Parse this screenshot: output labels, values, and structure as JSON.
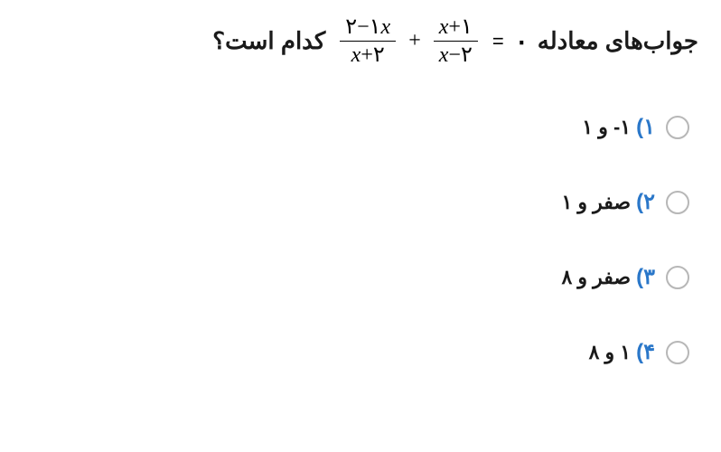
{
  "question": {
    "prefix": "جواب‌های معادله",
    "suffix": "کدام است؟",
    "equation": {
      "rhs": "۰",
      "eq": "=",
      "frac1": {
        "num_a": "١",
        "num_op": "−",
        "num_b": "٢",
        "xvar": "x",
        "den_a": "x",
        "den_op": "+",
        "den_b": "٢"
      },
      "plus": "+",
      "frac2": {
        "num_a": "x",
        "num_op": "+",
        "num_b": "١",
        "den_a": "x",
        "den_op": "−",
        "den_b": "٢"
      }
    }
  },
  "options": [
    {
      "num": "١)",
      "text": "١- و ١"
    },
    {
      "num": "٢)",
      "text": "صفر و ١"
    },
    {
      "num": "٣)",
      "text": "صفر و ٨"
    },
    {
      "num": "۴)",
      "text": "١ و ٨"
    }
  ],
  "colors": {
    "option_number": "#2a77c9",
    "text": "#1a1a1a",
    "radio_border": "#b7b7b7",
    "background": "#ffffff"
  }
}
